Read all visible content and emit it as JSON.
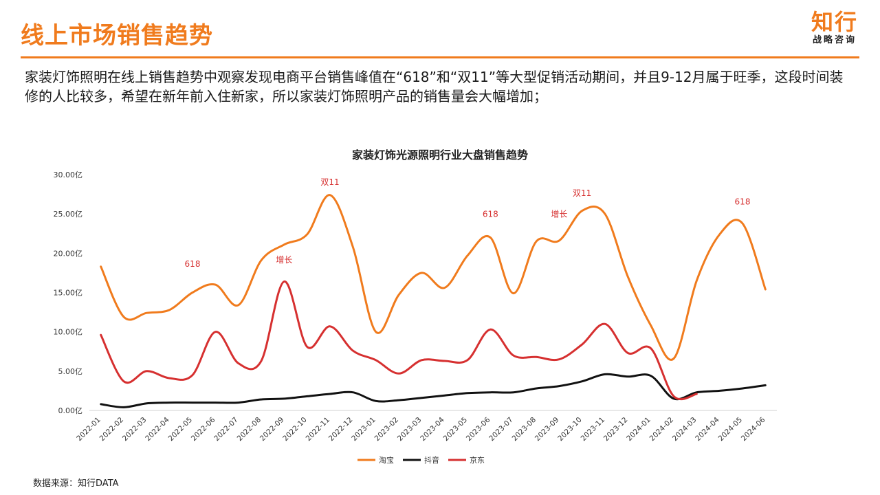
{
  "header": {
    "title": "线上市场销售趋势",
    "logo_main": "知行",
    "logo_sub": "战略咨询"
  },
  "description": "家装灯饰照明在线上销售趋势中观察发现电商平台销售峰值在“618”和“双11”等大型促销活动期间，并且9-12月属于旺季，这段时间装修的人比较多，希望在新年前入住新家，所以家装灯饰照明产品的销售量会大幅增加；",
  "source": "数据来源：知行DATA",
  "colors": {
    "accent": "#f07b1d",
    "taobao": "#f07b1d",
    "douyin": "#111111",
    "jd": "#d63030",
    "annotation": "#d63030"
  },
  "chart_data": {
    "type": "line",
    "title": "家装灯饰光源照明行业大盘销售趋势",
    "xlabel": "",
    "ylabel": "",
    "ylim": [
      0,
      30
    ],
    "y_ticks": [
      "0.00亿",
      "5.00亿",
      "10.00亿",
      "15.00亿",
      "20.00亿",
      "25.00亿",
      "30.00亿"
    ],
    "legend_position": "bottom",
    "grid": false,
    "categories": [
      "2022-01",
      "2022-02",
      "2022-03",
      "2022-04",
      "2022-05",
      "2022-06",
      "2022-07",
      "2022-08",
      "2022-09",
      "2022-10",
      "2022-11",
      "2022-12",
      "2023-01",
      "2023-02",
      "2023-03",
      "2023-04",
      "2023-05",
      "2023-06",
      "2023-07",
      "2023-08",
      "2023-09",
      "2023-10",
      "2023-11",
      "2023-12",
      "2024-01",
      "2024-02",
      "2024-03",
      "2024-04",
      "2024-05",
      "2024-06"
    ],
    "series": [
      {
        "name": "淘宝",
        "color": "#f07b1d",
        "values": [
          18.3,
          11.9,
          12.4,
          12.8,
          15.0,
          16.0,
          13.4,
          19.1,
          21.1,
          22.4,
          27.4,
          20.8,
          10.0,
          14.7,
          17.5,
          15.6,
          19.7,
          22.0,
          14.9,
          21.5,
          21.6,
          25.4,
          25.0,
          17.0,
          10.8,
          6.6,
          16.5,
          22.4,
          23.8,
          15.4
        ]
      },
      {
        "name": "抖音",
        "color": "#111111",
        "values": [
          0.8,
          0.4,
          0.9,
          1.0,
          1.0,
          1.0,
          1.0,
          1.4,
          1.5,
          1.8,
          2.1,
          2.3,
          1.2,
          1.3,
          1.6,
          1.9,
          2.2,
          2.3,
          2.3,
          2.8,
          3.1,
          3.7,
          4.6,
          4.3,
          4.4,
          1.5,
          2.3,
          2.5,
          2.8,
          3.2
        ]
      },
      {
        "name": "京东",
        "color": "#d63030",
        "values": [
          9.6,
          3.7,
          5.0,
          4.1,
          4.5,
          10.0,
          6.0,
          6.3,
          16.4,
          8.1,
          10.7,
          7.6,
          6.4,
          4.7,
          6.4,
          6.3,
          6.4,
          10.3,
          7.0,
          6.8,
          6.5,
          8.4,
          11.0,
          7.3,
          7.9,
          1.8,
          2.1,
          null,
          null,
          null
        ]
      }
    ],
    "annotations": [
      {
        "text": "618",
        "category": "2022-05",
        "y": 18.3
      },
      {
        "text": "增长",
        "category": "2022-09",
        "y": 18.8
      },
      {
        "text": "双11",
        "category": "2022-11",
        "y": 28.7
      },
      {
        "text": "618",
        "category": "2023-06",
        "y": 24.6
      },
      {
        "text": "增长",
        "category": "2023-09",
        "y": 24.6
      },
      {
        "text": "双11",
        "category": "2023-10",
        "y": 27.3
      },
      {
        "text": "618",
        "category": "2024-05",
        "y": 26.2
      }
    ]
  }
}
